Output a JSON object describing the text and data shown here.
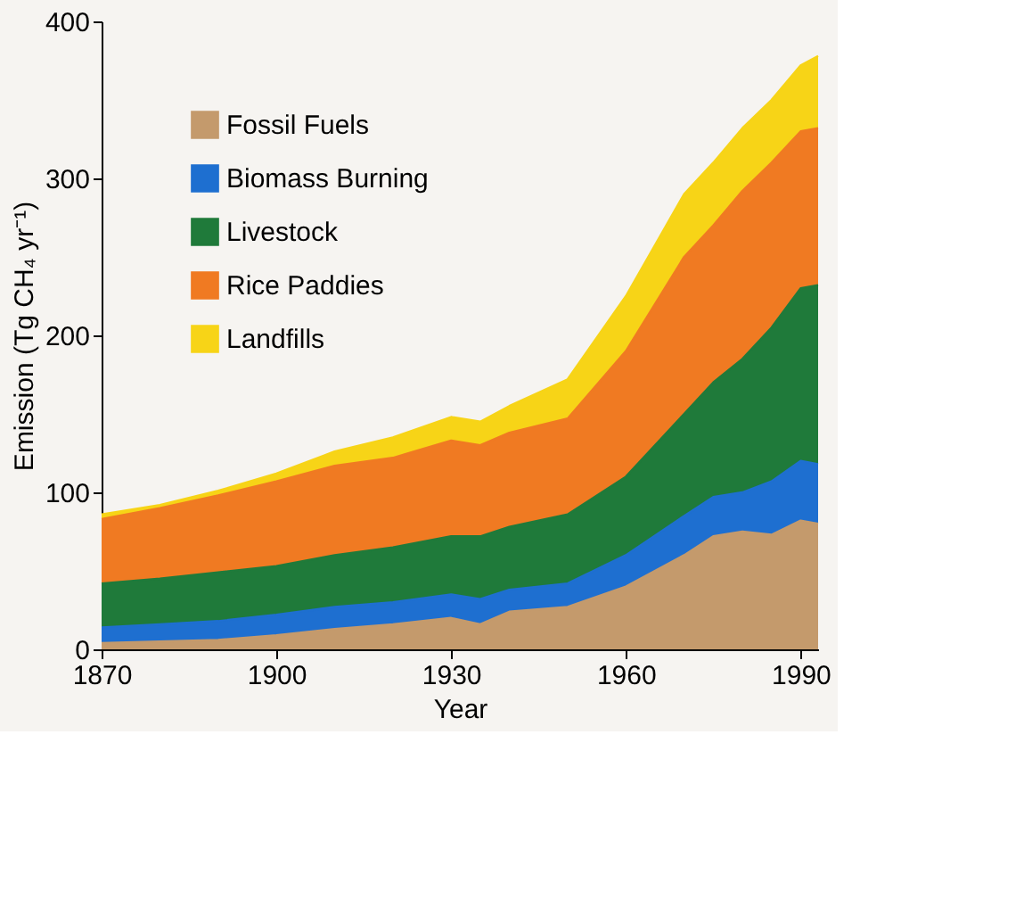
{
  "chart_data": {
    "type": "area",
    "stacked": true,
    "xlabel": "Year",
    "ylabel": "Emission (Tg CH₄ yr⁻¹)",
    "x": [
      1870,
      1880,
      1890,
      1900,
      1910,
      1920,
      1930,
      1935,
      1940,
      1950,
      1960,
      1970,
      1975,
      1980,
      1985,
      1990,
      1993
    ],
    "series": [
      {
        "name": "Fossil Fuels",
        "color": "#c49a6c",
        "values": [
          4,
          5,
          6,
          9,
          13,
          16,
          20,
          16,
          24,
          27,
          40,
          60,
          72,
          75,
          73,
          82,
          80
        ]
      },
      {
        "name": "Biomass Burning",
        "color": "#1e6fd0",
        "values": [
          10,
          11,
          12,
          13,
          14,
          14,
          15,
          16,
          14,
          15,
          20,
          25,
          25,
          25,
          34,
          38,
          38
        ]
      },
      {
        "name": "Livestock",
        "color": "#1f7a3a",
        "values": [
          28,
          29,
          31,
          31,
          33,
          35,
          37,
          40,
          40,
          44,
          50,
          65,
          73,
          85,
          98,
          110,
          114
        ]
      },
      {
        "name": "Rice Paddies",
        "color": "#f07a22",
        "values": [
          41,
          45,
          49,
          54,
          57,
          57,
          61,
          58,
          60,
          61,
          80,
          100,
          100,
          107,
          105,
          100,
          100
        ]
      },
      {
        "name": "Landfills",
        "color": "#f7d417",
        "values": [
          3,
          2,
          3,
          5,
          9,
          13,
          15,
          15,
          17,
          25,
          35,
          40,
          40,
          40,
          40,
          42,
          46
        ]
      }
    ],
    "xlim": [
      1870,
      1993
    ],
    "xticks": [
      1870,
      1900,
      1930,
      1960,
      1990
    ],
    "ylim": [
      0,
      400
    ],
    "yticks": [
      0,
      100,
      200,
      300,
      400
    ],
    "grid": false,
    "legend": "top left"
  }
}
